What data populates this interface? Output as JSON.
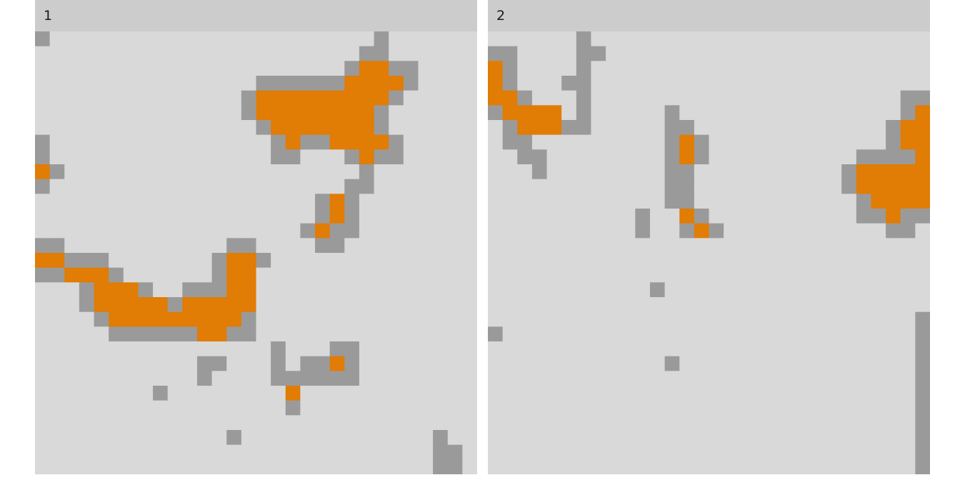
{
  "colors": {
    "background": "#d9d9d9",
    "habitat": "#9a9a9a",
    "core": "#e17c05",
    "strip": "#cccccc"
  },
  "chart_data": {
    "type": "heatmap",
    "grid_size": [
      30,
      30
    ],
    "cell_classes": {
      "0": "background",
      "1": "habitat",
      "2": "core"
    },
    "panels": [
      {
        "label": "1",
        "rows": [
          "100000000000000000000001000000",
          "000000000000000000000011000000",
          "000000000000000000000122110000",
          "000000000000000111111222210000",
          "000000000000001222222222100000",
          "000000000000001222222221000000",
          "000000000000000122222221000000",
          "100000000000000012112222100000",
          "100000000000000011000121100000",
          "210000000000000000000010000000",
          "100000000000000000000110000000",
          "000000000000000000012100000000",
          "000000000000000000012100000000",
          "000000000000000000121100000000",
          "110000000000011000011000000000",
          "221110000000122100000000000000",
          "112221000000122000000000000000",
          "000122210011122000000000000000",
          "000122222122222000000000000000",
          "000012222222221000000000000000",
          "000001111112211000000000000000",
          "000000000000000010001100000000",
          "000000000001100010112100000000",
          "000000000001000011111100000000",
          "000000001000000002000000000000",
          "000000000000000001000000000000",
          "000000000000000000000000000000",
          "000000000000010000000000000100",
          "000000000000000000000000000110",
          "000000000000000000000000000110"
        ]
      },
      {
        "label": "2",
        "rows": [
          "000000100000000000000000000000",
          "110000110000000000000000000000",
          "210000100000000000000000000000",
          "210001100000000000000000000000",
          "221000100000000000000000000011",
          "122220100000100000000000000012",
          "012221100000110000000000000122",
          "011000000000121000000000000122",
          "001100000000121000000000011112",
          "000100000000110000000000122222",
          "000000000000110000000000122222",
          "000000000000110000000000012222",
          "000000000010021000000000011211",
          "000000000010012100000000000110",
          "000000000000000000000000000000",
          "000000000000000000000000000000",
          "000000000000000000000000000000",
          "000000000001000000000000000000",
          "000000000000000000000000000000",
          "000000000000000000000000000001",
          "100000000000000000000000000001",
          "000000000000000000000000000001",
          "000000000000100000000000000001",
          "000000000000000000000000000001",
          "000000000000000000000000000001",
          "000000000000000000000000000001",
          "000000000000000000000000000001",
          "000000000000000000000000000001",
          "000000000000000000000000000001",
          "000000000000000000000000000001"
        ]
      }
    ]
  }
}
